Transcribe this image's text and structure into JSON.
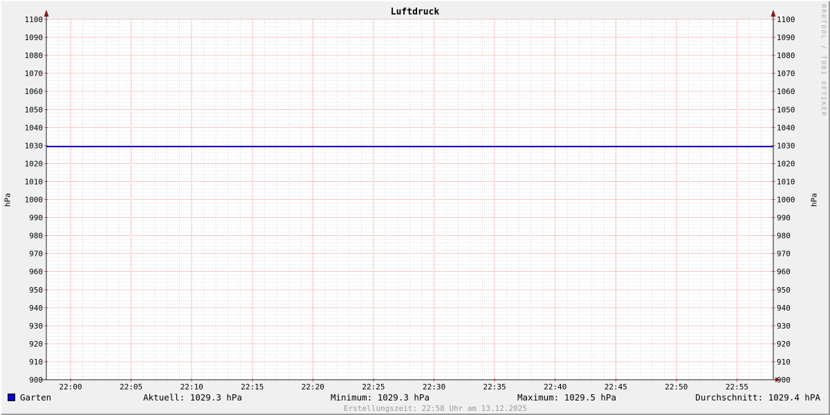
{
  "chart_data": {
    "type": "line",
    "title": "Luftdruck",
    "ylabel_left": "hPa",
    "ylabel_right": "hPa",
    "ylim": [
      900,
      1100
    ],
    "y_major_step": 10,
    "y_minor_step": 2,
    "y_ticks": [
      900,
      910,
      920,
      930,
      940,
      950,
      960,
      970,
      980,
      990,
      1000,
      1010,
      1020,
      1030,
      1040,
      1050,
      1060,
      1070,
      1080,
      1090,
      1100
    ],
    "x_range_minutes": [
      -2,
      58
    ],
    "x_major_step_minutes": 5,
    "x_minor_step_minutes": 1,
    "x_major_minutes": [
      0,
      5,
      10,
      15,
      20,
      25,
      30,
      35,
      40,
      45,
      50,
      55
    ],
    "x_tick_labels": [
      "22:00",
      "22:05",
      "22:10",
      "22:15",
      "22:20",
      "22:25",
      "22:30",
      "22:35",
      "22:40",
      "22:45",
      "22:50",
      "22:55"
    ],
    "grid": true,
    "legend_position": "bottom",
    "series": [
      {
        "name": "Garten",
        "color": "#0000c8",
        "x_minutes": [
          -2,
          58
        ],
        "values": [
          1029.4,
          1029.4
        ]
      }
    ]
  },
  "colors": {
    "canvas_background": "#f0f0f0",
    "plot_background": "#ffffff",
    "minor_grid": "#d8d8d8",
    "major_grid": "#f58f8f",
    "edge_tick": "#e05555",
    "axis": "#1a1a1a",
    "arrow": "#7d1d1d",
    "line": "#0000c8",
    "footer_muted": "#9a9a9a"
  },
  "footer": {
    "legend_label": "Garten",
    "aktuell": "Aktuell: 1029.3 hPa",
    "minimum": "Minimum: 1029.3 hPa",
    "maximum": "Maximum: 1029.5 hPa",
    "durchschnitt": "Durchschnitt: 1029.4 hPA",
    "erstellungszeit": "Erstellungszeit: 22:58 Uhr am 13.12.2025"
  },
  "watermark": "RRDTOOL / TOBI OETIKER"
}
